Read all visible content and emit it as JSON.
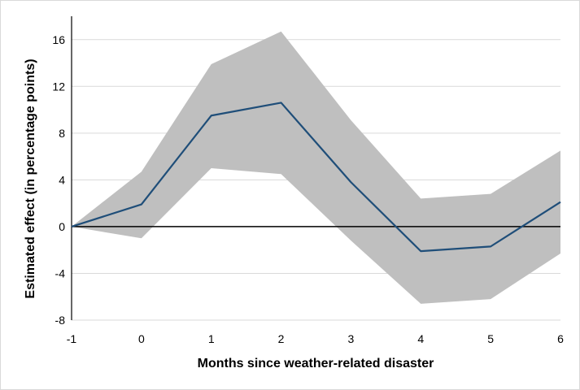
{
  "chart_data": {
    "type": "line",
    "title": "",
    "xlabel": "Months since weather-related disaster",
    "ylabel": "Estimated effect (in percentage points)",
    "x": [
      -1,
      0,
      1,
      2,
      3,
      4,
      5,
      6
    ],
    "xticks": [
      "-1",
      "0",
      "1",
      "2",
      "3",
      "4",
      "5",
      "6"
    ],
    "yticks": [
      "-8",
      "-4",
      "0",
      "4",
      "8",
      "12",
      "16"
    ],
    "ylim": [
      -8,
      18
    ],
    "grid": "horizontal",
    "legend": "none",
    "series": [
      {
        "values": [
          0,
          1.9,
          9.5,
          10.6,
          3.8,
          -2.1,
          -1.7,
          2.1
        ],
        "ci_lower": [
          0,
          -1.0,
          5.0,
          4.5,
          -1.2,
          -6.6,
          -6.2,
          -2.3
        ],
        "ci_upper": [
          0,
          4.7,
          13.9,
          16.7,
          9.1,
          2.4,
          2.8,
          6.5
        ]
      }
    ],
    "colors": {
      "line": "#1f4e79",
      "band": "#bfbfbf",
      "grid": "#d9d9d9",
      "zero_line": "#000000"
    }
  }
}
